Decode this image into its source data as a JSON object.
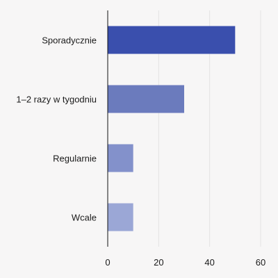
{
  "chart_data": {
    "type": "bar",
    "orientation": "horizontal",
    "categories": [
      "Sporadycznie",
      "1–2 razy w tygodniu",
      "Regularnie",
      "Wcale"
    ],
    "values": [
      50,
      30,
      10,
      10
    ],
    "colors": [
      "#3a4fad",
      "#6b7bbd",
      "#8391cb",
      "#9ba7d6"
    ],
    "xlim": [
      0,
      60
    ],
    "xticks": [
      0,
      20,
      40,
      60
    ],
    "title": "",
    "xlabel": "",
    "ylabel": "",
    "grid": "vertical"
  }
}
